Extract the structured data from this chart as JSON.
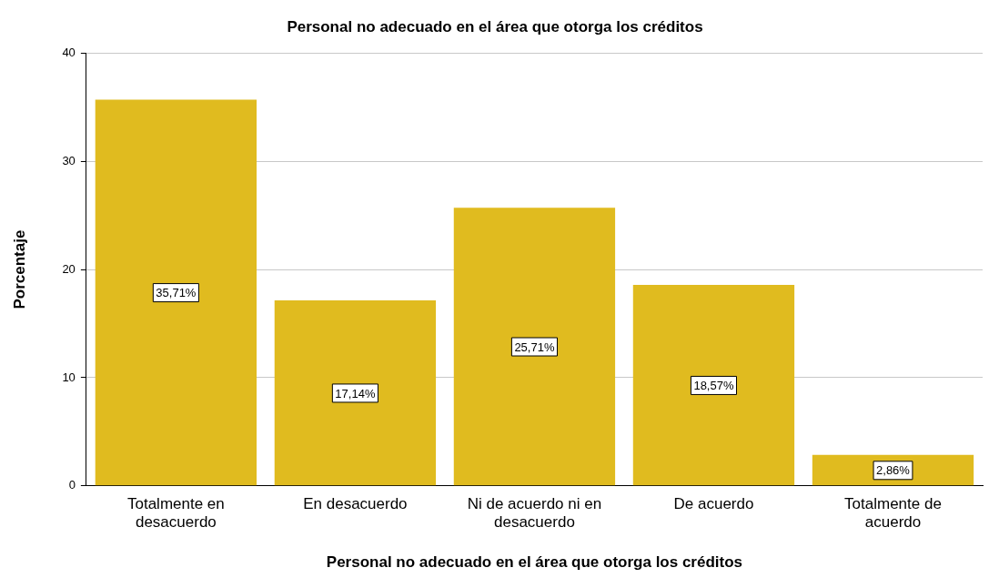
{
  "chart_data": {
    "type": "bar",
    "title": "Personal no adecuado en el área que otorga los créditos",
    "xlabel": "Personal no adecuado en el área que otorga los créditos",
    "ylabel": "Porcentaje",
    "categories": [
      "Totalmente en desacuerdo",
      "En desacuerdo",
      "Ni de acuerdo ni en desacuerdo",
      "De acuerdo",
      "Totalmente de acuerdo"
    ],
    "values": [
      35.71,
      17.14,
      25.71,
      18.57,
      2.86
    ],
    "value_labels": [
      "35,71%",
      "17,14%",
      "25,71%",
      "18,57%",
      "2,86%"
    ],
    "color": "#e0bb1f",
    "ylim": [
      0,
      40
    ],
    "yticks": [
      0,
      10,
      20,
      30,
      40
    ],
    "grid": "y",
    "legend": false
  }
}
